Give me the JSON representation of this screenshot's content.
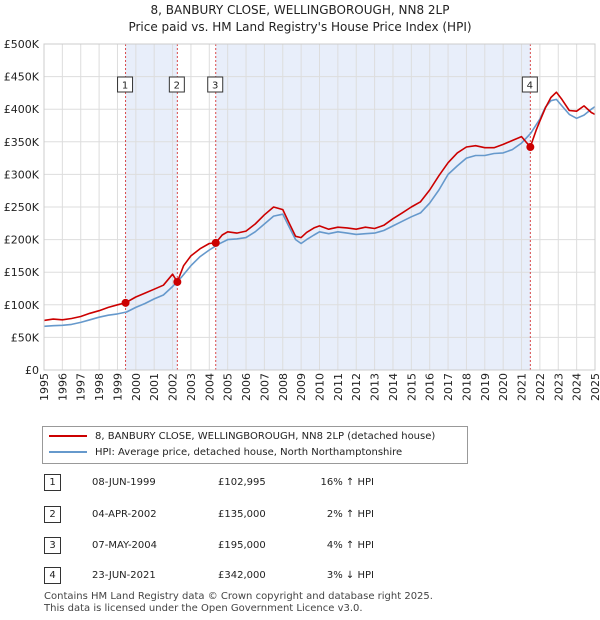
{
  "title": "8, BANBURY CLOSE, WELLINGBOROUGH, NN8 2LP",
  "subtitle": "Price paid vs. HM Land Registry's House Price Index (HPI)",
  "colors": {
    "property": "#cc0000",
    "hpi": "#6699cc",
    "shade": "#e8eefa",
    "vline": "#cc0000",
    "grid": "#dddddd"
  },
  "chart_data": {
    "type": "line",
    "title": "8, BANBURY CLOSE, WELLINGBOROUGH, NN8 2LP",
    "xlim": [
      1995,
      2025
    ],
    "ylim": [
      0,
      500000
    ],
    "y_ticks": [
      0,
      50000,
      100000,
      150000,
      200000,
      250000,
      300000,
      350000,
      400000,
      450000,
      500000
    ],
    "y_tick_labels": [
      "£0",
      "£50K",
      "£100K",
      "£150K",
      "£200K",
      "£250K",
      "£300K",
      "£350K",
      "£400K",
      "£450K",
      "£500K"
    ],
    "x_ticks": [
      1995,
      1996,
      1997,
      1998,
      1999,
      2000,
      2001,
      2002,
      2003,
      2004,
      2005,
      2006,
      2007,
      2008,
      2009,
      2010,
      2011,
      2012,
      2013,
      2014,
      2015,
      2016,
      2017,
      2018,
      2019,
      2020,
      2021,
      2022,
      2023,
      2024,
      2025
    ],
    "x_tick_labels": [
      "1995",
      "1996",
      "1997",
      "1998",
      "1999",
      "2000",
      "2001",
      "2002",
      "2003",
      "2004",
      "2005",
      "2006",
      "2007",
      "2008",
      "2009",
      "2010",
      "2011",
      "2012",
      "2013",
      "2014",
      "2015",
      "2016",
      "2017",
      "2018",
      "2019",
      "2020",
      "2021",
      "2022",
      "2023",
      "2024",
      "2025"
    ],
    "grid": true,
    "shaded_ranges": [
      [
        1999.44,
        2002.26
      ],
      [
        2004.35,
        2021.48
      ]
    ],
    "series": [
      {
        "name": "8, BANBURY CLOSE, WELLINGBOROUGH, NN8 2LP (detached house)",
        "color": "#cc0000",
        "x": [
          1995,
          1995.5,
          1996,
          1996.5,
          1997,
          1997.5,
          1998,
          1998.5,
          1999,
          1999.44,
          2000,
          2000.5,
          2001,
          2001.5,
          2002,
          2002.26,
          2002.6,
          2003,
          2003.5,
          2004,
          2004.35,
          2004.7,
          2005,
          2005.5,
          2006,
          2006.5,
          2007,
          2007.5,
          2008,
          2008.3,
          2008.7,
          2009,
          2009.3,
          2009.7,
          2010,
          2010.5,
          2011,
          2011.5,
          2012,
          2012.5,
          2013,
          2013.5,
          2014,
          2014.5,
          2015,
          2015.5,
          2016,
          2016.5,
          2017,
          2017.5,
          2018,
          2018.5,
          2019,
          2019.5,
          2020,
          2020.5,
          2021,
          2021.48,
          2021.8,
          2022,
          2022.3,
          2022.6,
          2022.9,
          2023.2,
          2023.6,
          2024,
          2024.4,
          2024.8,
          2025
        ],
        "y": [
          76000,
          78000,
          77000,
          79000,
          82000,
          87000,
          91000,
          96000,
          100000,
          102995,
          112000,
          118000,
          124000,
          130000,
          147000,
          135000,
          160000,
          175000,
          186000,
          194000,
          195000,
          207000,
          212000,
          210000,
          213000,
          224000,
          238000,
          250000,
          246000,
          228000,
          205000,
          203000,
          211000,
          218000,
          221000,
          216000,
          219000,
          218000,
          216000,
          219000,
          217000,
          222000,
          232000,
          241000,
          250000,
          258000,
          276000,
          298000,
          318000,
          333000,
          342000,
          344000,
          341000,
          341000,
          346000,
          352000,
          358000,
          342000,
          368000,
          382000,
          402000,
          418000,
          426000,
          415000,
          398000,
          397000,
          405000,
          395000,
          392000
        ]
      },
      {
        "name": "HPI: Average price, detached house, North Northamptonshire",
        "color": "#6699cc",
        "x": [
          1995,
          1995.5,
          1996,
          1996.5,
          1997,
          1997.5,
          1998,
          1998.5,
          1999,
          1999.5,
          2000,
          2000.5,
          2001,
          2001.5,
          2002,
          2002.5,
          2003,
          2003.5,
          2004,
          2004.5,
          2005,
          2005.5,
          2006,
          2006.5,
          2007,
          2007.5,
          2008,
          2008.3,
          2008.7,
          2009,
          2009.3,
          2009.7,
          2010,
          2010.5,
          2011,
          2011.5,
          2012,
          2012.5,
          2013,
          2013.5,
          2014,
          2014.5,
          2015,
          2015.5,
          2016,
          2016.5,
          2017,
          2017.5,
          2018,
          2018.5,
          2019,
          2019.5,
          2020,
          2020.5,
          2021,
          2021.5,
          2022,
          2022.3,
          2022.6,
          2022.9,
          2023.2,
          2023.6,
          2024,
          2024.4,
          2024.8,
          2025
        ],
        "y": [
          67000,
          68000,
          68500,
          70000,
          73000,
          77000,
          81000,
          84000,
          86000,
          89000,
          96000,
          102000,
          109000,
          115000,
          128000,
          143000,
          160000,
          174000,
          184000,
          193000,
          200000,
          201000,
          203000,
          212000,
          224000,
          236000,
          239000,
          222000,
          200000,
          194000,
          200000,
          207000,
          212000,
          209000,
          212000,
          210000,
          208000,
          209000,
          210000,
          214000,
          221000,
          228000,
          235000,
          241000,
          256000,
          276000,
          300000,
          313000,
          325000,
          329000,
          329000,
          332000,
          333000,
          338000,
          348000,
          363000,
          385000,
          403000,
          413000,
          415000,
          405000,
          392000,
          386000,
          391000,
          400000,
          404000
        ]
      }
    ],
    "sales": [
      {
        "label": "1",
        "x": 1999.44,
        "y": 102995
      },
      {
        "label": "2",
        "x": 2002.26,
        "y": 135000
      },
      {
        "label": "3",
        "x": 2004.35,
        "y": 195000
      },
      {
        "label": "4",
        "x": 2021.48,
        "y": 342000
      }
    ]
  },
  "legend": {
    "property_label": "8, BANBURY CLOSE, WELLINGBOROUGH, NN8 2LP (detached house)",
    "hpi_label": "HPI: Average price, detached house, North Northamptonshire"
  },
  "transactions": [
    {
      "num": "1",
      "date": "08-JUN-1999",
      "price": "£102,995",
      "hpi": "16% ↑ HPI"
    },
    {
      "num": "2",
      "date": "04-APR-2002",
      "price": "£135,000",
      "hpi": "2% ↑ HPI"
    },
    {
      "num": "3",
      "date": "07-MAY-2004",
      "price": "£195,000",
      "hpi": "4% ↑ HPI"
    },
    {
      "num": "4",
      "date": "23-JUN-2021",
      "price": "£342,000",
      "hpi": "3% ↓ HPI"
    }
  ],
  "footer": {
    "line1": "Contains HM Land Registry data © Crown copyright and database right 2025.",
    "line2": "This data is licensed under the Open Government Licence v3.0."
  }
}
